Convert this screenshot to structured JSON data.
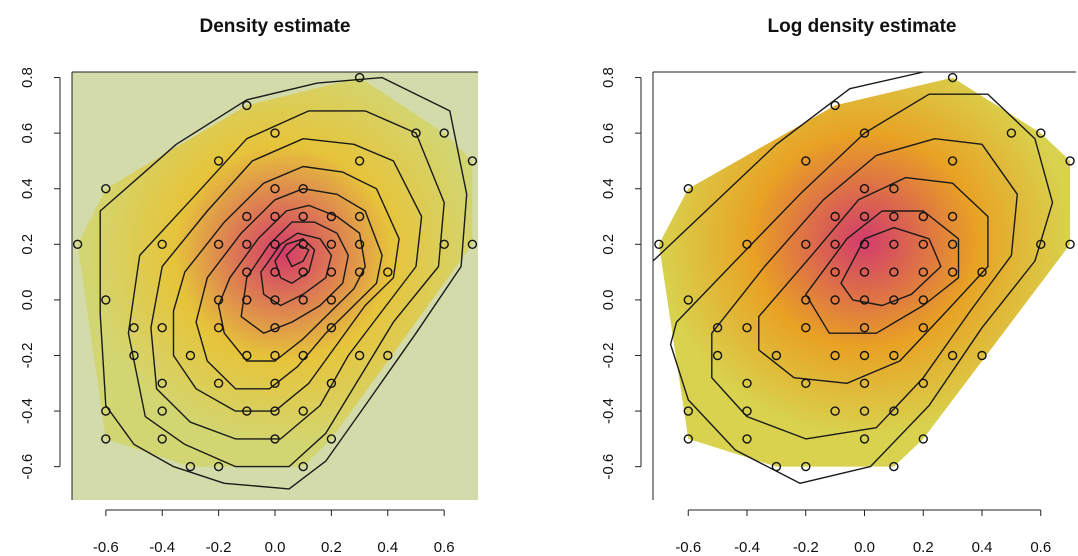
{
  "chart_data": [
    {
      "type": "contour",
      "title": "Density estimate",
      "xlabel": "",
      "ylabel": "",
      "xlim": [
        -0.72,
        0.72
      ],
      "ylim": [
        -0.72,
        0.82
      ],
      "xticks": [
        "-0.6",
        "-0.4",
        "-0.2",
        "0.0",
        "0.2",
        "0.4",
        "0.6"
      ],
      "yticks": [
        "-0.6",
        "-0.4",
        "-0.2",
        "0.0",
        "0.2",
        "0.4",
        "0.6",
        "0.8"
      ],
      "background": "#d4dbab",
      "hull_color": "#d2d672",
      "low_color": "#e6c43a",
      "high_color": "#d43a6a",
      "points": [
        [
          -0.7,
          0.2
        ],
        [
          -0.6,
          0.4
        ],
        [
          -0.6,
          0.0
        ],
        [
          -0.6,
          -0.4
        ],
        [
          -0.6,
          -0.5
        ],
        [
          -0.5,
          -0.1
        ],
        [
          -0.5,
          -0.2
        ],
        [
          -0.4,
          0.2
        ],
        [
          -0.4,
          -0.1
        ],
        [
          -0.4,
          -0.3
        ],
        [
          -0.4,
          -0.4
        ],
        [
          -0.4,
          -0.5
        ],
        [
          -0.3,
          -0.2
        ],
        [
          -0.3,
          -0.6
        ],
        [
          -0.2,
          0.5
        ],
        [
          -0.2,
          0.2
        ],
        [
          -0.2,
          0.0
        ],
        [
          -0.2,
          -0.1
        ],
        [
          -0.2,
          -0.3
        ],
        [
          -0.2,
          -0.6
        ],
        [
          -0.1,
          0.7
        ],
        [
          -0.1,
          0.3
        ],
        [
          -0.1,
          0.2
        ],
        [
          -0.1,
          0.1
        ],
        [
          -0.1,
          0.0
        ],
        [
          -0.1,
          -0.2
        ],
        [
          -0.1,
          -0.4
        ],
        [
          0.0,
          0.6
        ],
        [
          0.0,
          0.4
        ],
        [
          0.0,
          0.3
        ],
        [
          0.0,
          0.2
        ],
        [
          0.0,
          0.1
        ],
        [
          0.0,
          0.0
        ],
        [
          0.0,
          -0.1
        ],
        [
          0.0,
          -0.2
        ],
        [
          0.0,
          -0.3
        ],
        [
          0.0,
          -0.4
        ],
        [
          0.0,
          -0.5
        ],
        [
          0.1,
          0.4
        ],
        [
          0.1,
          0.3
        ],
        [
          0.1,
          0.2
        ],
        [
          0.1,
          0.1
        ],
        [
          0.1,
          0.0
        ],
        [
          0.1,
          -0.2
        ],
        [
          0.1,
          -0.4
        ],
        [
          0.1,
          -0.6
        ],
        [
          0.2,
          0.3
        ],
        [
          0.2,
          0.2
        ],
        [
          0.2,
          0.1
        ],
        [
          0.2,
          0.0
        ],
        [
          0.2,
          -0.1
        ],
        [
          0.2,
          -0.3
        ],
        [
          0.2,
          -0.5
        ],
        [
          0.3,
          0.8
        ],
        [
          0.3,
          0.5
        ],
        [
          0.3,
          0.3
        ],
        [
          0.3,
          0.2
        ],
        [
          0.3,
          0.1
        ],
        [
          0.3,
          -0.2
        ],
        [
          0.4,
          0.1
        ],
        [
          0.4,
          -0.2
        ],
        [
          0.5,
          0.6
        ],
        [
          0.6,
          0.6
        ],
        [
          0.6,
          0.2
        ],
        [
          0.7,
          0.5
        ],
        [
          0.7,
          0.2
        ]
      ],
      "contours": [
        [
          [
            -0.62,
            0.32
          ],
          [
            -0.35,
            0.56
          ],
          [
            -0.1,
            0.72
          ],
          [
            0.15,
            0.78
          ],
          [
            0.38,
            0.8
          ],
          [
            0.62,
            0.68
          ],
          [
            0.68,
            0.38
          ],
          [
            0.66,
            0.12
          ],
          [
            0.5,
            -0.12
          ],
          [
            0.32,
            -0.38
          ],
          [
            0.18,
            -0.58
          ],
          [
            0.05,
            -0.68
          ],
          [
            -0.18,
            -0.66
          ],
          [
            -0.36,
            -0.6
          ],
          [
            -0.5,
            -0.52
          ],
          [
            -0.6,
            -0.38
          ],
          [
            -0.62,
            -0.05
          ]
        ],
        [
          [
            -0.48,
            0.16
          ],
          [
            -0.28,
            0.38
          ],
          [
            -0.1,
            0.58
          ],
          [
            0.12,
            0.68
          ],
          [
            0.32,
            0.68
          ],
          [
            0.5,
            0.6
          ],
          [
            0.6,
            0.35
          ],
          [
            0.58,
            0.12
          ],
          [
            0.42,
            -0.08
          ],
          [
            0.3,
            -0.28
          ],
          [
            0.18,
            -0.48
          ],
          [
            0.05,
            -0.6
          ],
          [
            -0.14,
            -0.6
          ],
          [
            -0.32,
            -0.52
          ],
          [
            -0.46,
            -0.42
          ],
          [
            -0.52,
            -0.12
          ]
        ],
        [
          [
            -0.4,
            0.12
          ],
          [
            -0.24,
            0.32
          ],
          [
            -0.08,
            0.5
          ],
          [
            0.1,
            0.58
          ],
          [
            0.28,
            0.56
          ],
          [
            0.42,
            0.5
          ],
          [
            0.52,
            0.3
          ],
          [
            0.5,
            0.12
          ],
          [
            0.38,
            -0.04
          ],
          [
            0.26,
            -0.2
          ],
          [
            0.16,
            -0.38
          ],
          [
            0.02,
            -0.5
          ],
          [
            -0.14,
            -0.5
          ],
          [
            -0.3,
            -0.44
          ],
          [
            -0.42,
            -0.32
          ],
          [
            -0.44,
            -0.1
          ]
        ],
        [
          [
            -0.32,
            0.1
          ],
          [
            -0.18,
            0.28
          ],
          [
            -0.04,
            0.42
          ],
          [
            0.1,
            0.48
          ],
          [
            0.24,
            0.46
          ],
          [
            0.36,
            0.4
          ],
          [
            0.44,
            0.22
          ],
          [
            0.42,
            0.08
          ],
          [
            0.32,
            -0.02
          ],
          [
            0.22,
            -0.16
          ],
          [
            0.12,
            -0.3
          ],
          [
            0.0,
            -0.4
          ],
          [
            -0.14,
            -0.4
          ],
          [
            -0.28,
            -0.32
          ],
          [
            -0.36,
            -0.2
          ],
          [
            -0.36,
            -0.04
          ]
        ],
        [
          [
            -0.24,
            0.08
          ],
          [
            -0.12,
            0.24
          ],
          [
            0.0,
            0.36
          ],
          [
            0.1,
            0.4
          ],
          [
            0.22,
            0.38
          ],
          [
            0.32,
            0.32
          ],
          [
            0.38,
            0.16
          ],
          [
            0.36,
            0.06
          ],
          [
            0.28,
            -0.02
          ],
          [
            0.18,
            -0.12
          ],
          [
            0.08,
            -0.24
          ],
          [
            -0.02,
            -0.32
          ],
          [
            -0.14,
            -0.32
          ],
          [
            -0.24,
            -0.22
          ],
          [
            -0.28,
            -0.08
          ]
        ],
        [
          [
            -0.16,
            0.08
          ],
          [
            -0.06,
            0.22
          ],
          [
            0.04,
            0.32
          ],
          [
            0.12,
            0.34
          ],
          [
            0.22,
            0.3
          ],
          [
            0.3,
            0.24
          ],
          [
            0.32,
            0.12
          ],
          [
            0.28,
            0.04
          ],
          [
            0.2,
            -0.04
          ],
          [
            0.1,
            -0.14
          ],
          [
            0.0,
            -0.22
          ],
          [
            -0.1,
            -0.22
          ],
          [
            -0.18,
            -0.12
          ],
          [
            -0.2,
            -0.02
          ]
        ],
        [
          [
            -0.1,
            0.08
          ],
          [
            -0.02,
            0.2
          ],
          [
            0.06,
            0.28
          ],
          [
            0.14,
            0.28
          ],
          [
            0.22,
            0.24
          ],
          [
            0.26,
            0.16
          ],
          [
            0.24,
            0.06
          ],
          [
            0.16,
            -0.02
          ],
          [
            0.06,
            -0.08
          ],
          [
            -0.04,
            -0.12
          ],
          [
            -0.12,
            -0.06
          ]
        ],
        [
          [
            -0.05,
            0.1
          ],
          [
            0.02,
            0.2
          ],
          [
            0.08,
            0.24
          ],
          [
            0.16,
            0.22
          ],
          [
            0.2,
            0.16
          ],
          [
            0.18,
            0.08
          ],
          [
            0.1,
            0.02
          ],
          [
            0.02,
            -0.02
          ],
          [
            -0.04,
            0.02
          ]
        ],
        [
          [
            0.0,
            0.14
          ],
          [
            0.04,
            0.2
          ],
          [
            0.1,
            0.22
          ],
          [
            0.14,
            0.18
          ],
          [
            0.12,
            0.1
          ],
          [
            0.06,
            0.06
          ],
          [
            0.02,
            0.08
          ]
        ],
        [
          [
            0.04,
            0.16
          ],
          [
            0.08,
            0.2
          ],
          [
            0.12,
            0.18
          ],
          [
            0.1,
            0.14
          ],
          [
            0.06,
            0.12
          ]
        ]
      ]
    },
    {
      "type": "contour",
      "title": "Log density estimate",
      "xlabel": "",
      "ylabel": "",
      "xlim": [
        -0.72,
        0.72
      ],
      "ylim": [
        -0.72,
        0.82
      ],
      "xticks": [
        "-0.6",
        "-0.4",
        "-0.2",
        "0.0",
        "0.2",
        "0.4",
        "0.6"
      ],
      "yticks": [
        "-0.6",
        "-0.4",
        "-0.2",
        "0.0",
        "0.2",
        "0.4",
        "0.6",
        "0.8"
      ],
      "background": "#ffffff",
      "hull_color": "#d8d24e",
      "low_color": "#e8a224",
      "high_color": "#d23c6c",
      "points": [
        [
          -0.7,
          0.2
        ],
        [
          -0.6,
          0.4
        ],
        [
          -0.6,
          0.0
        ],
        [
          -0.6,
          -0.4
        ],
        [
          -0.6,
          -0.5
        ],
        [
          -0.5,
          -0.1
        ],
        [
          -0.5,
          -0.2
        ],
        [
          -0.4,
          0.2
        ],
        [
          -0.4,
          -0.1
        ],
        [
          -0.4,
          -0.3
        ],
        [
          -0.4,
          -0.4
        ],
        [
          -0.4,
          -0.5
        ],
        [
          -0.3,
          -0.2
        ],
        [
          -0.3,
          -0.6
        ],
        [
          -0.2,
          0.5
        ],
        [
          -0.2,
          0.2
        ],
        [
          -0.2,
          0.0
        ],
        [
          -0.2,
          -0.1
        ],
        [
          -0.2,
          -0.3
        ],
        [
          -0.2,
          -0.6
        ],
        [
          -0.1,
          0.7
        ],
        [
          -0.1,
          0.3
        ],
        [
          -0.1,
          0.2
        ],
        [
          -0.1,
          0.1
        ],
        [
          -0.1,
          0.0
        ],
        [
          -0.1,
          -0.2
        ],
        [
          -0.1,
          -0.4
        ],
        [
          0.0,
          0.6
        ],
        [
          0.0,
          0.4
        ],
        [
          0.0,
          0.3
        ],
        [
          0.0,
          0.2
        ],
        [
          0.0,
          0.1
        ],
        [
          0.0,
          0.0
        ],
        [
          0.0,
          -0.1
        ],
        [
          0.0,
          -0.2
        ],
        [
          0.0,
          -0.3
        ],
        [
          0.0,
          -0.4
        ],
        [
          0.0,
          -0.5
        ],
        [
          0.1,
          0.4
        ],
        [
          0.1,
          0.3
        ],
        [
          0.1,
          0.2
        ],
        [
          0.1,
          0.1
        ],
        [
          0.1,
          0.0
        ],
        [
          0.1,
          -0.2
        ],
        [
          0.1,
          -0.4
        ],
        [
          0.1,
          -0.6
        ],
        [
          0.2,
          0.3
        ],
        [
          0.2,
          0.2
        ],
        [
          0.2,
          0.1
        ],
        [
          0.2,
          0.0
        ],
        [
          0.2,
          -0.1
        ],
        [
          0.2,
          -0.3
        ],
        [
          0.2,
          -0.5
        ],
        [
          0.3,
          0.8
        ],
        [
          0.3,
          0.5
        ],
        [
          0.3,
          0.3
        ],
        [
          0.3,
          0.2
        ],
        [
          0.3,
          0.1
        ],
        [
          0.3,
          -0.2
        ],
        [
          0.4,
          0.1
        ],
        [
          0.4,
          -0.2
        ],
        [
          0.5,
          0.6
        ],
        [
          0.6,
          0.6
        ],
        [
          0.6,
          0.2
        ],
        [
          0.7,
          0.5
        ],
        [
          0.7,
          0.2
        ]
      ],
      "contours": [
        [
          [
            -0.72,
            0.14
          ],
          [
            -0.52,
            0.34
          ],
          [
            -0.3,
            0.56
          ],
          [
            -0.05,
            0.76
          ],
          [
            0.2,
            0.82
          ]
        ],
        [
          [
            -0.64,
            -0.08
          ],
          [
            -0.44,
            0.14
          ],
          [
            -0.22,
            0.38
          ],
          [
            0.0,
            0.6
          ],
          [
            0.22,
            0.74
          ],
          [
            0.42,
            0.74
          ],
          [
            0.58,
            0.58
          ],
          [
            0.64,
            0.35
          ],
          [
            0.58,
            0.14
          ],
          [
            0.4,
            -0.1
          ],
          [
            0.22,
            -0.38
          ],
          [
            0.02,
            -0.6
          ],
          [
            -0.22,
            -0.66
          ],
          [
            -0.44,
            -0.54
          ],
          [
            -0.6,
            -0.36
          ],
          [
            -0.66,
            -0.16
          ]
        ],
        [
          [
            -0.52,
            -0.12
          ],
          [
            -0.34,
            0.12
          ],
          [
            -0.14,
            0.36
          ],
          [
            0.04,
            0.52
          ],
          [
            0.24,
            0.58
          ],
          [
            0.4,
            0.56
          ],
          [
            0.52,
            0.38
          ],
          [
            0.5,
            0.16
          ],
          [
            0.36,
            -0.04
          ],
          [
            0.2,
            -0.28
          ],
          [
            0.04,
            -0.46
          ],
          [
            -0.2,
            -0.5
          ],
          [
            -0.4,
            -0.42
          ],
          [
            -0.52,
            -0.28
          ]
        ],
        [
          [
            -0.36,
            -0.06
          ],
          [
            -0.18,
            0.16
          ],
          [
            -0.02,
            0.36
          ],
          [
            0.14,
            0.44
          ],
          [
            0.3,
            0.42
          ],
          [
            0.42,
            0.3
          ],
          [
            0.42,
            0.12
          ],
          [
            0.28,
            -0.04
          ],
          [
            0.12,
            -0.22
          ],
          [
            -0.06,
            -0.3
          ],
          [
            -0.24,
            -0.28
          ],
          [
            -0.36,
            -0.18
          ]
        ],
        [
          [
            -0.2,
            0.02
          ],
          [
            -0.06,
            0.22
          ],
          [
            0.06,
            0.32
          ],
          [
            0.2,
            0.32
          ],
          [
            0.32,
            0.22
          ],
          [
            0.32,
            0.08
          ],
          [
            0.2,
            -0.02
          ],
          [
            0.04,
            -0.12
          ],
          [
            -0.12,
            -0.12
          ]
        ],
        [
          [
            -0.08,
            0.06
          ],
          [
            0.0,
            0.22
          ],
          [
            0.1,
            0.26
          ],
          [
            0.22,
            0.22
          ],
          [
            0.26,
            0.12
          ],
          [
            0.16,
            0.02
          ],
          [
            0.06,
            -0.02
          ],
          [
            -0.04,
            0.0
          ]
        ]
      ]
    }
  ]
}
